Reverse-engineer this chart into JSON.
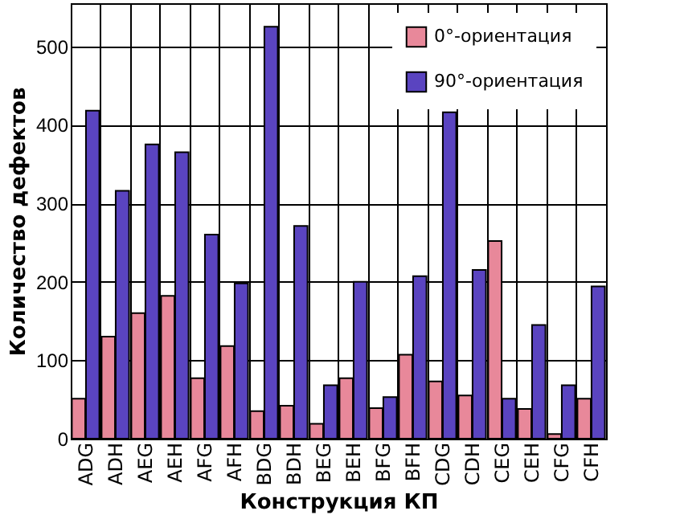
{
  "chart_data": {
    "type": "bar",
    "xlabel": "Конструкция КП",
    "ylabel": "Количество дефектов",
    "categories": [
      "ADG",
      "ADH",
      "AEG",
      "AEH",
      "AFG",
      "AFH",
      "BDG",
      "BDH",
      "BEG",
      "BEH",
      "BFG",
      "BFH",
      "CDG",
      "CDH",
      "CEG",
      "CEH",
      "CFG",
      "CFH"
    ],
    "series": [
      {
        "name": "0°-ориентация",
        "color": "#e8889a",
        "values": [
          51,
          130,
          160,
          182,
          77,
          118,
          35,
          42,
          19,
          77,
          39,
          107,
          73,
          55,
          252,
          38,
          6,
          51
        ]
      },
      {
        "name": "90°-ориентация",
        "color": "#5a44c0",
        "values": [
          418,
          316,
          375,
          365,
          260,
          198,
          525,
          271,
          68,
          200,
          53,
          207,
          416,
          215,
          51,
          145,
          68,
          194
        ]
      }
    ],
    "ylim": [
      0,
      555
    ],
    "yticks": [
      0,
      100,
      200,
      300,
      400,
      500
    ],
    "grid": true,
    "legend": "top right"
  }
}
